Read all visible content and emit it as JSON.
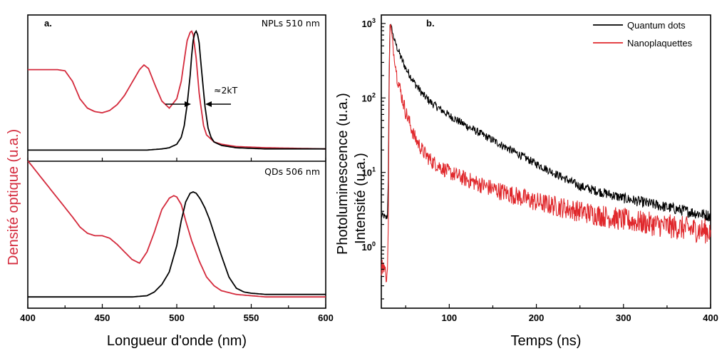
{
  "chart_data": [
    {
      "type": "line",
      "panel_label": "a.",
      "xlabel": "Longueur d'onde (nm)",
      "ylabel_black": "Photoluminescence (u.a.)",
      "ylabel_red": "Densité optique (u.a.)",
      "xlim": [
        400,
        600
      ],
      "xticks": [
        400,
        450,
        500,
        550,
        600
      ],
      "colors": {
        "absorbance": "#d42a3c",
        "emission": "#000000"
      },
      "subpanels": [
        {
          "label": "NPLs 510 nm",
          "annotation": "≈2kT",
          "ylim": [
            0,
            1.12
          ],
          "series": [
            {
              "role": "absorbance",
              "color": "#d42a3c",
              "x": [
                400,
                410,
                420,
                425,
                430,
                435,
                440,
                445,
                450,
                455,
                460,
                465,
                470,
                475,
                478,
                481,
                485,
                490,
                495,
                500,
                503,
                505,
                507,
                509,
                510,
                511,
                513,
                515,
                518,
                520,
                525,
                530,
                540,
                560,
                600
              ],
              "y": [
                0.7,
                0.7,
                0.7,
                0.69,
                0.6,
                0.45,
                0.37,
                0.34,
                0.33,
                0.35,
                0.4,
                0.48,
                0.59,
                0.7,
                0.74,
                0.71,
                0.58,
                0.43,
                0.37,
                0.45,
                0.6,
                0.78,
                0.95,
                1.02,
                1.03,
                1.0,
                0.8,
                0.5,
                0.22,
                0.14,
                0.08,
                0.06,
                0.04,
                0.03,
                0.02
              ]
            },
            {
              "role": "emission",
              "color": "#000000",
              "x": [
                400,
                450,
                480,
                490,
                495,
                500,
                503,
                505,
                507,
                509,
                510,
                511,
                512,
                513,
                514,
                515,
                517,
                519,
                521,
                523,
                525,
                530,
                540,
                560,
                600
              ],
              "y": [
                0.01,
                0.01,
                0.01,
                0.02,
                0.03,
                0.06,
                0.12,
                0.22,
                0.4,
                0.65,
                0.82,
                0.95,
                1.01,
                1.03,
                1.0,
                0.93,
                0.65,
                0.38,
                0.2,
                0.12,
                0.08,
                0.05,
                0.03,
                0.02,
                0.02
              ]
            }
          ]
        },
        {
          "label": "QDs 506 nm",
          "ylim": [
            0,
            1.05
          ],
          "series": [
            {
              "role": "absorbance",
              "color": "#d42a3c",
              "x": [
                400,
                410,
                420,
                430,
                435,
                440,
                445,
                450,
                455,
                460,
                465,
                470,
                475,
                480,
                485,
                490,
                495,
                498,
                500,
                503,
                506,
                510,
                515,
                520,
                525,
                530,
                540,
                550,
                560,
                580,
                600
              ],
              "y": [
                1.1,
                0.95,
                0.8,
                0.65,
                0.57,
                0.52,
                0.5,
                0.5,
                0.48,
                0.43,
                0.37,
                0.31,
                0.28,
                0.37,
                0.53,
                0.71,
                0.8,
                0.82,
                0.81,
                0.75,
                0.62,
                0.46,
                0.3,
                0.17,
                0.1,
                0.06,
                0.03,
                0.02,
                0.01,
                0.01,
                0.01
              ]
            },
            {
              "role": "emission",
              "color": "#000000",
              "x": [
                400,
                450,
                470,
                480,
                485,
                490,
                495,
                500,
                503,
                506,
                509,
                511,
                513,
                516,
                519,
                522,
                525,
                530,
                535,
                540,
                545,
                550,
                560,
                580,
                600
              ],
              "y": [
                0.01,
                0.01,
                0.01,
                0.02,
                0.05,
                0.11,
                0.21,
                0.42,
                0.62,
                0.77,
                0.84,
                0.85,
                0.84,
                0.79,
                0.72,
                0.63,
                0.52,
                0.34,
                0.17,
                0.08,
                0.05,
                0.04,
                0.03,
                0.03,
                0.03
              ]
            }
          ]
        }
      ]
    },
    {
      "type": "line",
      "panel_label": "b.",
      "xlabel": "Temps (ns)",
      "ylabel": "Intensité (u.a.)",
      "yscale": "log",
      "xlim": [
        22,
        400
      ],
      "ylim": [
        0.15,
        1300
      ],
      "xticks": [
        100,
        200,
        300,
        400
      ],
      "yticks": [
        {
          "value": 1,
          "label": "10",
          "exp": "0"
        },
        {
          "value": 10,
          "label": "10",
          "exp": "1"
        },
        {
          "value": 100,
          "label": "10",
          "exp": "2"
        },
        {
          "value": 1000,
          "label": "10",
          "exp": "3"
        }
      ],
      "legend": "top-right",
      "series": [
        {
          "name": "Quantum dots",
          "color": "#000000",
          "x": [
            22,
            25,
            27,
            29,
            30,
            31,
            32,
            34,
            36,
            40,
            45,
            50,
            60,
            70,
            80,
            100,
            120,
            150,
            200,
            250,
            300,
            350,
            400
          ],
          "y": [
            2.6,
            2.6,
            2.4,
            2.6,
            8,
            200,
            1000,
            850,
            650,
            480,
            340,
            250,
            160,
            110,
            85,
            58,
            42,
            27,
            13,
            6.5,
            4.5,
            3.4,
            2.6
          ]
        },
        {
          "name": "Nanoplaquettes",
          "color": "#e0282c",
          "x": [
            22,
            25,
            27,
            29,
            30,
            31,
            32,
            34,
            36,
            40,
            45,
            50,
            60,
            70,
            80,
            100,
            120,
            150,
            200,
            250,
            300,
            350,
            400
          ],
          "y": [
            0.5,
            0.6,
            0.4,
            0.5,
            2,
            120,
            1050,
            700,
            420,
            200,
            110,
            65,
            30,
            19,
            14,
            10,
            8,
            6,
            4,
            3,
            2.3,
            1.9,
            1.6
          ]
        }
      ]
    }
  ]
}
